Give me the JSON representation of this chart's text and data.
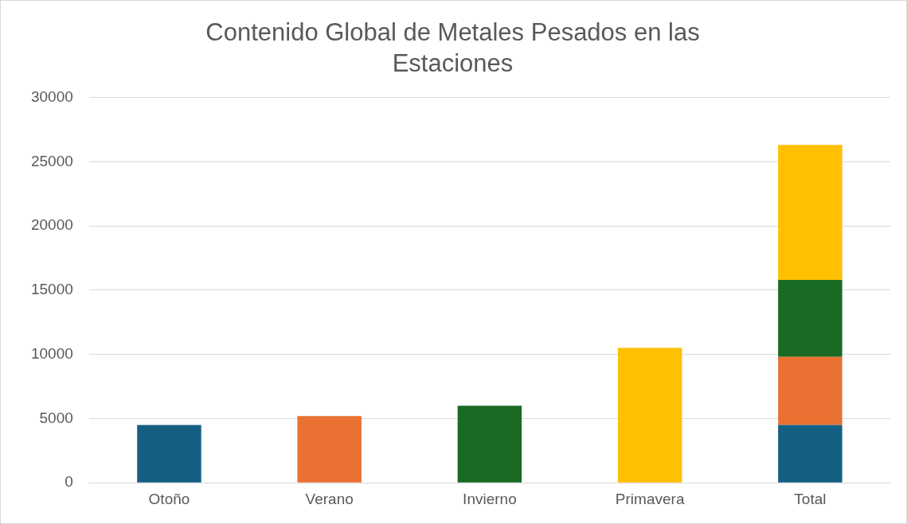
{
  "chart_data": {
    "type": "bar",
    "title": "Contenido Global de Metales Pesados en las Estaciones",
    "stacked": true,
    "categories": [
      "Otoño",
      "Verano",
      "Invierno",
      "Primavera",
      "Total"
    ],
    "series": [
      {
        "color": "#156082",
        "values": [
          4500,
          null,
          null,
          null,
          4500
        ]
      },
      {
        "color": "#e97132",
        "values": [
          null,
          5200,
          null,
          null,
          5300
        ]
      },
      {
        "color": "#196b24",
        "values": [
          null,
          null,
          6000,
          null,
          6000
        ]
      },
      {
        "color": "#ffc000",
        "values": [
          null,
          null,
          null,
          10500,
          10500
        ]
      }
    ],
    "ylim": [
      0,
      30000
    ],
    "yticks": [
      0,
      5000,
      10000,
      15000,
      20000,
      25000,
      30000
    ],
    "grid": "y",
    "legend": false
  }
}
